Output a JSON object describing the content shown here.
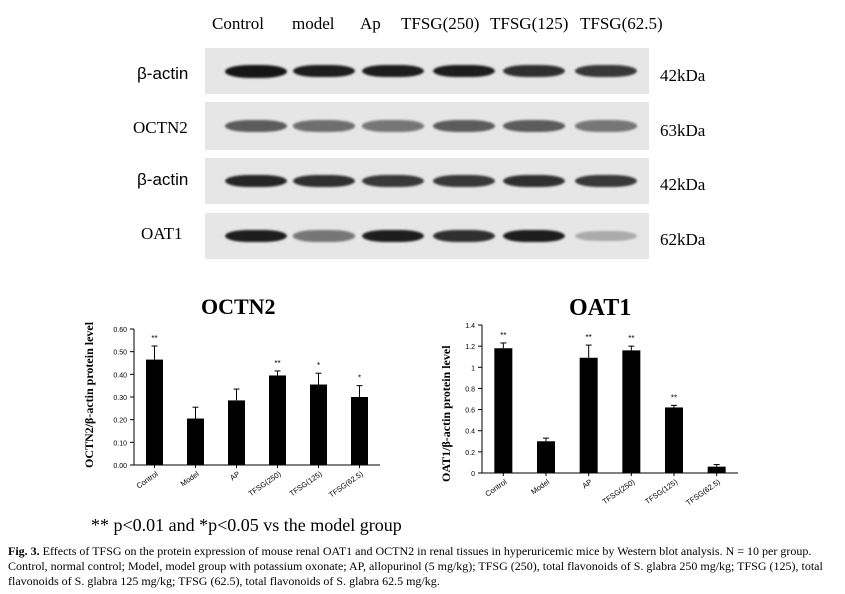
{
  "blot": {
    "lanes": [
      "Control",
      "model",
      "Ap",
      "TFSG(250)",
      "TFSG(125)",
      "TFSG(62.5)"
    ],
    "rows": [
      {
        "label": "β-actin",
        "kda": "42kDa",
        "intensity": [
          1.0,
          0.95,
          0.95,
          0.95,
          0.85,
          0.8
        ]
      },
      {
        "label": "OCTN2",
        "kda": "63kDa",
        "intensity": [
          0.6,
          0.5,
          0.45,
          0.6,
          0.6,
          0.45
        ]
      },
      {
        "label": "β-actin",
        "kda": "42kDa",
        "intensity": [
          0.9,
          0.85,
          0.8,
          0.8,
          0.85,
          0.8
        ]
      },
      {
        "label": "OAT1",
        "kda": "62kDa",
        "intensity": [
          0.95,
          0.45,
          0.95,
          0.85,
          0.95,
          0.15
        ]
      }
    ]
  },
  "chart_data": [
    {
      "type": "bar",
      "title": "OCTN2",
      "ylabel": "OCTN2/β-actin protein level",
      "xlabel": "",
      "categories": [
        "Control",
        "Model",
        "AP",
        "TFSG(250)",
        "TFSG(125)",
        "TFSG(62.5)"
      ],
      "values": [
        0.465,
        0.205,
        0.285,
        0.395,
        0.355,
        0.3
      ],
      "errors": [
        0.06,
        0.05,
        0.05,
        0.02,
        0.05,
        0.05
      ],
      "significance": [
        "**",
        "",
        "",
        "**",
        "*",
        "*"
      ],
      "ylim": [
        0,
        0.6
      ],
      "yticks": [
        "0.00",
        "0.10",
        "0.20",
        "0.30",
        "0.40",
        "0.50",
        "0.60"
      ],
      "grid": false
    },
    {
      "type": "bar",
      "title": "OAT1",
      "ylabel": "OAT1/β-actin protein level",
      "xlabel": "",
      "categories": [
        "Control",
        "Model",
        "AP",
        "TFSG(250)",
        "TFSG(125)",
        "TFSG(62.5)"
      ],
      "values": [
        1.18,
        0.3,
        1.09,
        1.16,
        0.62,
        0.06
      ],
      "errors": [
        0.05,
        0.03,
        0.12,
        0.04,
        0.02,
        0.02
      ],
      "significance": [
        "**",
        "",
        "**",
        "**",
        "**",
        ""
      ],
      "ylim": [
        0,
        1.4
      ],
      "yticks": [
        "0",
        "0.2",
        "0.4",
        "0.6",
        "0.8",
        "1",
        "1.2",
        "1.4"
      ],
      "grid": false
    }
  ],
  "note": "** p<0.01 and *p<0.05 vs the model group",
  "caption": {
    "label": "Fig. 3.",
    "text": "Effects of TFSG on the protein expression of mouse renal OAT1 and OCTN2 in renal tissues in hyperuricemic mice by Western blot analysis. N = 10 per group. Control, normal control; Model, model group with potassium oxonate; AP, allopurinol (5 mg/kg); TFSG (250), total flavonoids of S. glabra 250 mg/kg; TFSG (125), total flavonoids of S. glabra 125 mg/kg; TFSG (62.5), total flavonoids of S. glabra 62.5 mg/kg."
  }
}
